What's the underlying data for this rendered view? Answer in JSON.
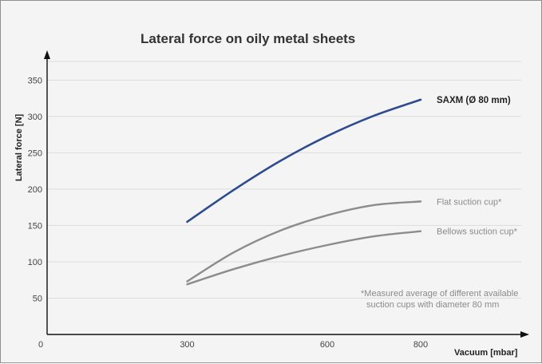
{
  "chart_data": {
    "type": "line",
    "title": "Lateral force on oily metal sheets",
    "xlabel": "Vacuum [mbar]",
    "ylabel": "Lateral force [N]",
    "x_ticks": [
      "0",
      "300",
      "600",
      "800"
    ],
    "y_ticks": [
      "50",
      "100",
      "150",
      "200",
      "250",
      "300",
      "350"
    ],
    "xlim": [
      0,
      1000
    ],
    "ylim": [
      0,
      380
    ],
    "grid": "horizontal",
    "series": [
      {
        "name": "SAXM (Ø 80 mm)",
        "color": "#2e4b8f",
        "x": [
          300,
          400,
          500,
          600,
          700,
          800
        ],
        "y": [
          155,
          199,
          239,
          273,
          301,
          323
        ]
      },
      {
        "name": "Flat suction cup*",
        "color": "#8c8c8c",
        "x": [
          300,
          400,
          500,
          600,
          700,
          800
        ],
        "y": [
          73,
          113,
          143,
          164,
          178,
          183
        ]
      },
      {
        "name": "Bellows suction cup*",
        "color": "#8c8c8c",
        "x": [
          300,
          400,
          500,
          600,
          700,
          800
        ],
        "y": [
          69,
          90,
          108,
          123,
          135,
          142
        ]
      }
    ],
    "annotation": [
      "*Measured average of different available",
      "suction cups with diameter 80 mm"
    ]
  }
}
